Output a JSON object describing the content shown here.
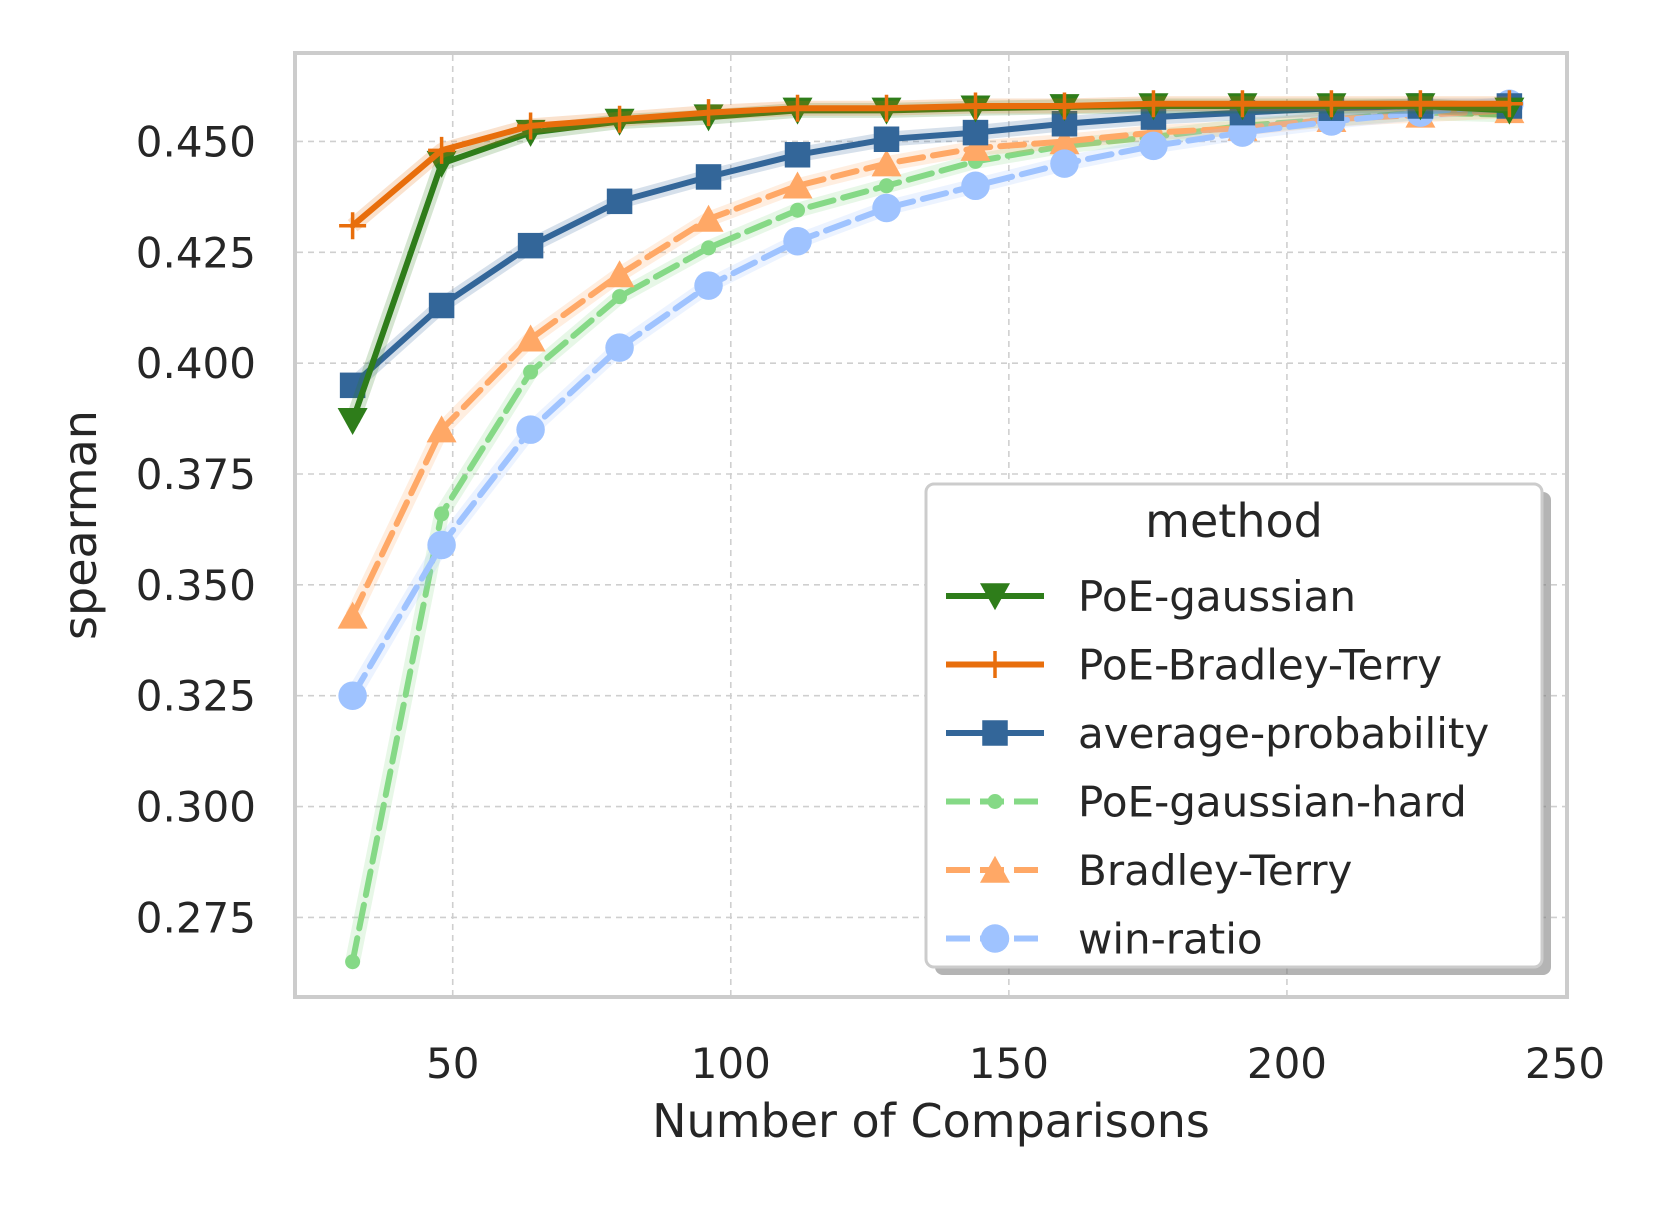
{
  "chart_data": {
    "type": "line",
    "title": "",
    "xlabel": "Number of Comparisons",
    "ylabel": "spearman",
    "xlim": [
      22,
      250
    ],
    "ylim": [
      0.2575,
      0.4695
    ],
    "xticks": [
      50,
      100,
      150,
      200,
      250
    ],
    "yticks": [
      0.275,
      0.3,
      0.325,
      0.35,
      0.375,
      0.4,
      0.425,
      0.45
    ],
    "ytick_labels": [
      "0.275",
      "0.300",
      "0.325",
      "0.350",
      "0.375",
      "0.400",
      "0.425",
      "0.450"
    ],
    "grid": true,
    "legend": {
      "title": "method",
      "position": "lower-right"
    },
    "x": [
      32,
      48,
      64,
      80,
      96,
      112,
      128,
      144,
      160,
      176,
      192,
      208,
      224,
      240
    ],
    "series": [
      {
        "name": "PoE-gaussian",
        "color": "#2e7d1a",
        "marker": "triangle-down",
        "dashed": false,
        "values": [
          0.387,
          0.445,
          0.452,
          0.4545,
          0.4555,
          0.457,
          0.457,
          0.4575,
          0.4578,
          0.458,
          0.458,
          0.458,
          0.458,
          0.457
        ]
      },
      {
        "name": "PoE-Bradley-Terry",
        "color": "#e86e0c",
        "marker": "plus",
        "dashed": false,
        "values": [
          0.431,
          0.448,
          0.4535,
          0.455,
          0.4565,
          0.4575,
          0.4575,
          0.458,
          0.458,
          0.4585,
          0.4585,
          0.4585,
          0.4585,
          0.4585
        ]
      },
      {
        "name": "average-probability",
        "color": "#336699",
        "marker": "square",
        "dashed": false,
        "values": [
          0.395,
          0.413,
          0.4265,
          0.4365,
          0.442,
          0.447,
          0.4505,
          0.452,
          0.454,
          0.4555,
          0.4565,
          0.4575,
          0.458,
          0.458
        ]
      },
      {
        "name": "PoE-gaussian-hard",
        "color": "#85d986",
        "marker": "dot",
        "dashed": true,
        "values": [
          0.265,
          0.366,
          0.398,
          0.415,
          0.426,
          0.4345,
          0.44,
          0.4455,
          0.449,
          0.451,
          0.4535,
          0.455,
          0.4565,
          0.456
        ]
      },
      {
        "name": "Bradley-Terry",
        "color": "#ffa866",
        "marker": "triangle-up",
        "dashed": true,
        "values": [
          0.343,
          0.385,
          0.4055,
          0.42,
          0.4325,
          0.44,
          0.445,
          0.4485,
          0.45,
          0.452,
          0.453,
          0.455,
          0.456,
          0.457
        ]
      },
      {
        "name": "win-ratio",
        "color": "#9fc3ff",
        "marker": "circle",
        "dashed": true,
        "values": [
          0.325,
          0.359,
          0.385,
          0.4035,
          0.4175,
          0.4275,
          0.435,
          0.44,
          0.445,
          0.449,
          0.452,
          0.4545,
          0.4565,
          0.4585
        ]
      }
    ]
  }
}
